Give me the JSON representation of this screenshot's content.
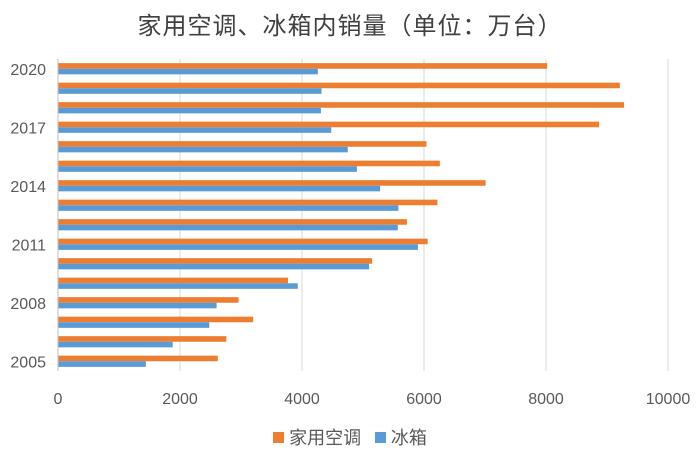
{
  "chart_data": {
    "type": "bar",
    "orientation": "horizontal",
    "title": "家用空调、冰箱内销量（单位：万台）",
    "xlim": [
      0,
      10000
    ],
    "x_ticks": [
      0,
      2000,
      4000,
      6000,
      8000,
      10000
    ],
    "grid": true,
    "legend_position": "bottom",
    "categories": [
      2020,
      2019,
      2018,
      2017,
      2016,
      2015,
      2014,
      2013,
      2012,
      2011,
      2010,
      2009,
      2008,
      2007,
      2006,
      2005
    ],
    "category_labels_shown": [
      "2020",
      "2017",
      "2014",
      "2011",
      "2008",
      "2005"
    ],
    "series": [
      {
        "name": "家用空调",
        "color": "#ED7D31",
        "values": [
          8020,
          9210,
          9280,
          8870,
          6040,
          6260,
          7010,
          6220,
          5720,
          6060,
          5150,
          3770,
          2960,
          3200,
          2760,
          2620
        ]
      },
      {
        "name": "冰箱",
        "color": "#5B9BD5",
        "values": [
          4260,
          4320,
          4310,
          4480,
          4750,
          4900,
          5280,
          5580,
          5570,
          5900,
          5100,
          3930,
          2600,
          2480,
          1880,
          1440
        ]
      }
    ]
  }
}
